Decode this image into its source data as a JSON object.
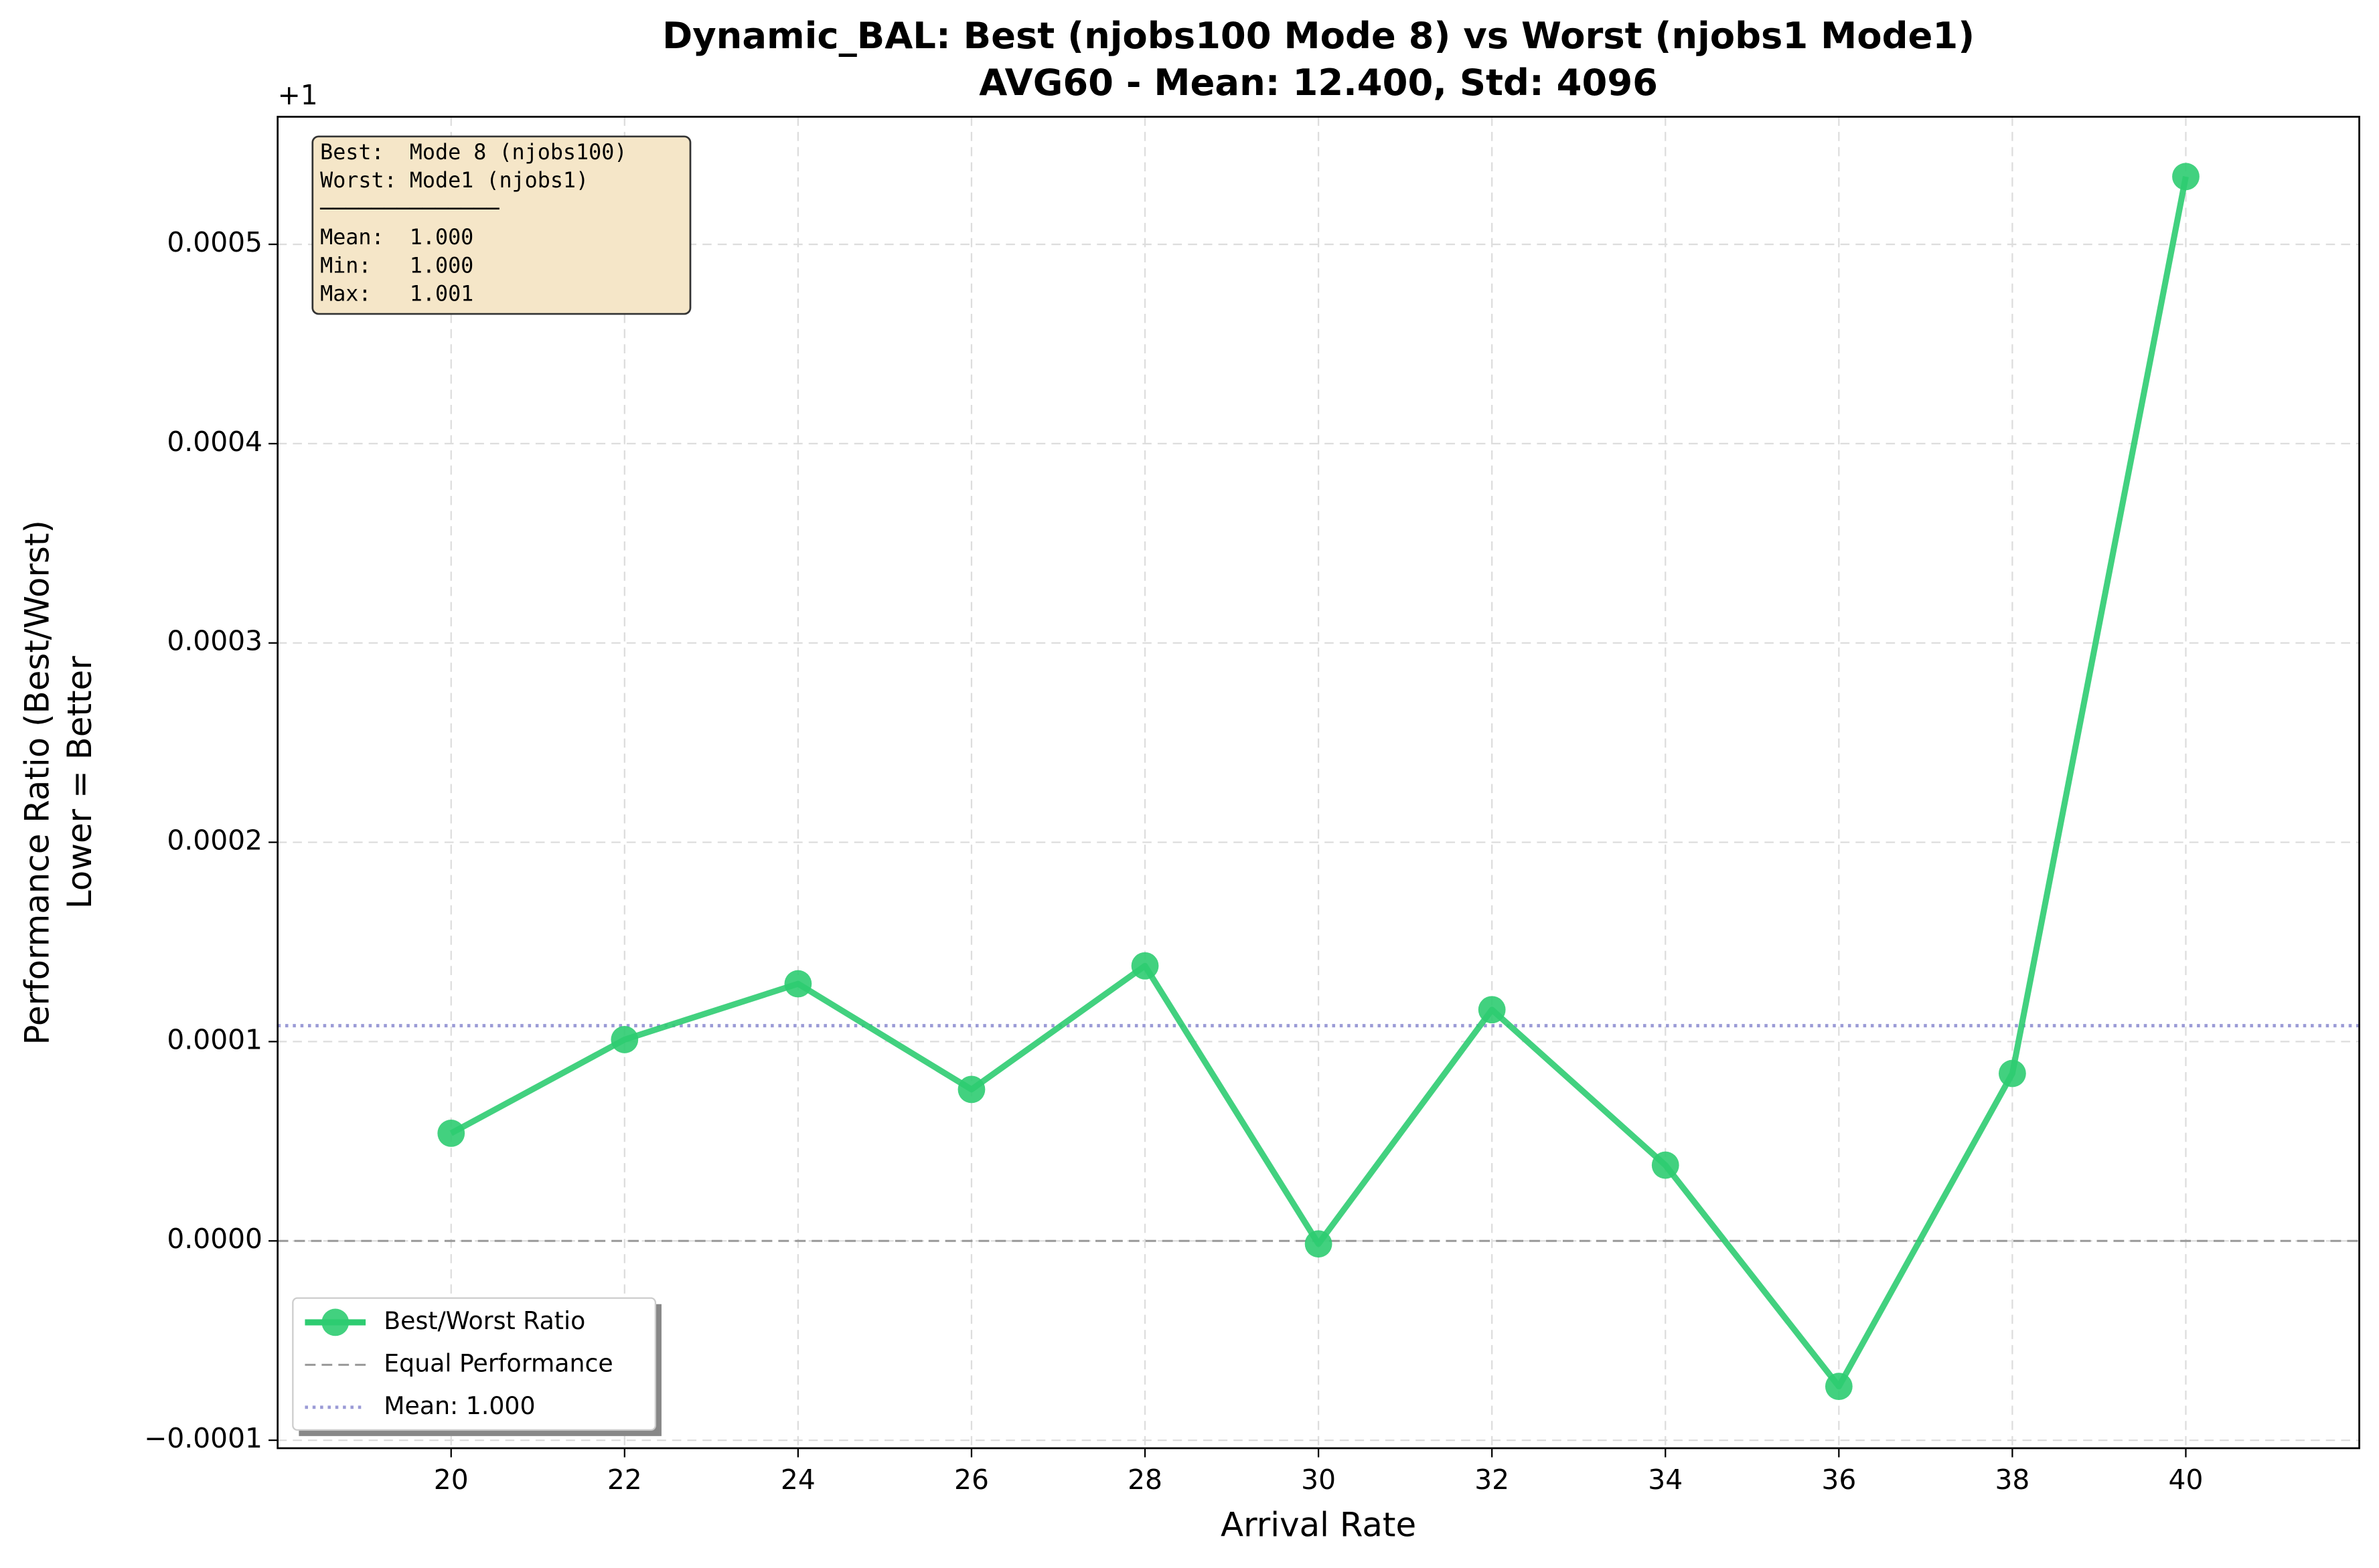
{
  "chart_data": {
    "type": "line",
    "title": "Dynamic_BAL: Best (njobs100 Mode 8) vs Worst (njobs1 Mode1)",
    "subtitle": "AVG60 - Mean: 12.400, Std: 4096",
    "x_label": "Arrival Rate",
    "y_label": [
      "Performance Ratio (Best/Worst)",
      "Lower = Better"
    ],
    "y_offset_label": "+1",
    "x": [
      20,
      22,
      24,
      26,
      28,
      30,
      32,
      34,
      36,
      38,
      40
    ],
    "series": [
      {
        "name": "Best/Worst Ratio",
        "color": "#2ecc71",
        "values": [
          5.4e-05,
          0.000101,
          0.000129,
          7.6e-05,
          0.000138,
          -1.5e-06,
          0.000116,
          3.8e-05,
          -7.3e-05,
          8.4e-05,
          0.000534
        ]
      }
    ],
    "reference_line": {
      "label": "Equal Performance",
      "value": 0,
      "color": "#999999"
    },
    "mean_line": {
      "label": "Mean: 1.000",
      "value": 0.000108,
      "color": "#9b9bd6"
    },
    "xlim": [
      18,
      42
    ],
    "xticks": [
      20,
      22,
      24,
      26,
      28,
      30,
      32,
      34,
      36,
      38,
      40
    ],
    "ylim": [
      -0.000104,
      0.000564
    ],
    "yticks": [
      {
        "value": -0.0001,
        "label": "−0.0001"
      },
      {
        "value": 0,
        "label": "0.0000"
      },
      0.0001,
      0.0002,
      0.0003,
      0.0004,
      0.0005
    ],
    "grid": true,
    "legend_position": "lower left",
    "annotation_lines": [
      "Best:  Mode 8 (njobs100)",
      "Worst: Mode1 (njobs1)",
      "──────────────",
      "Mean:  1.000",
      "Min:   1.000",
      "Max:   1.001"
    ]
  }
}
